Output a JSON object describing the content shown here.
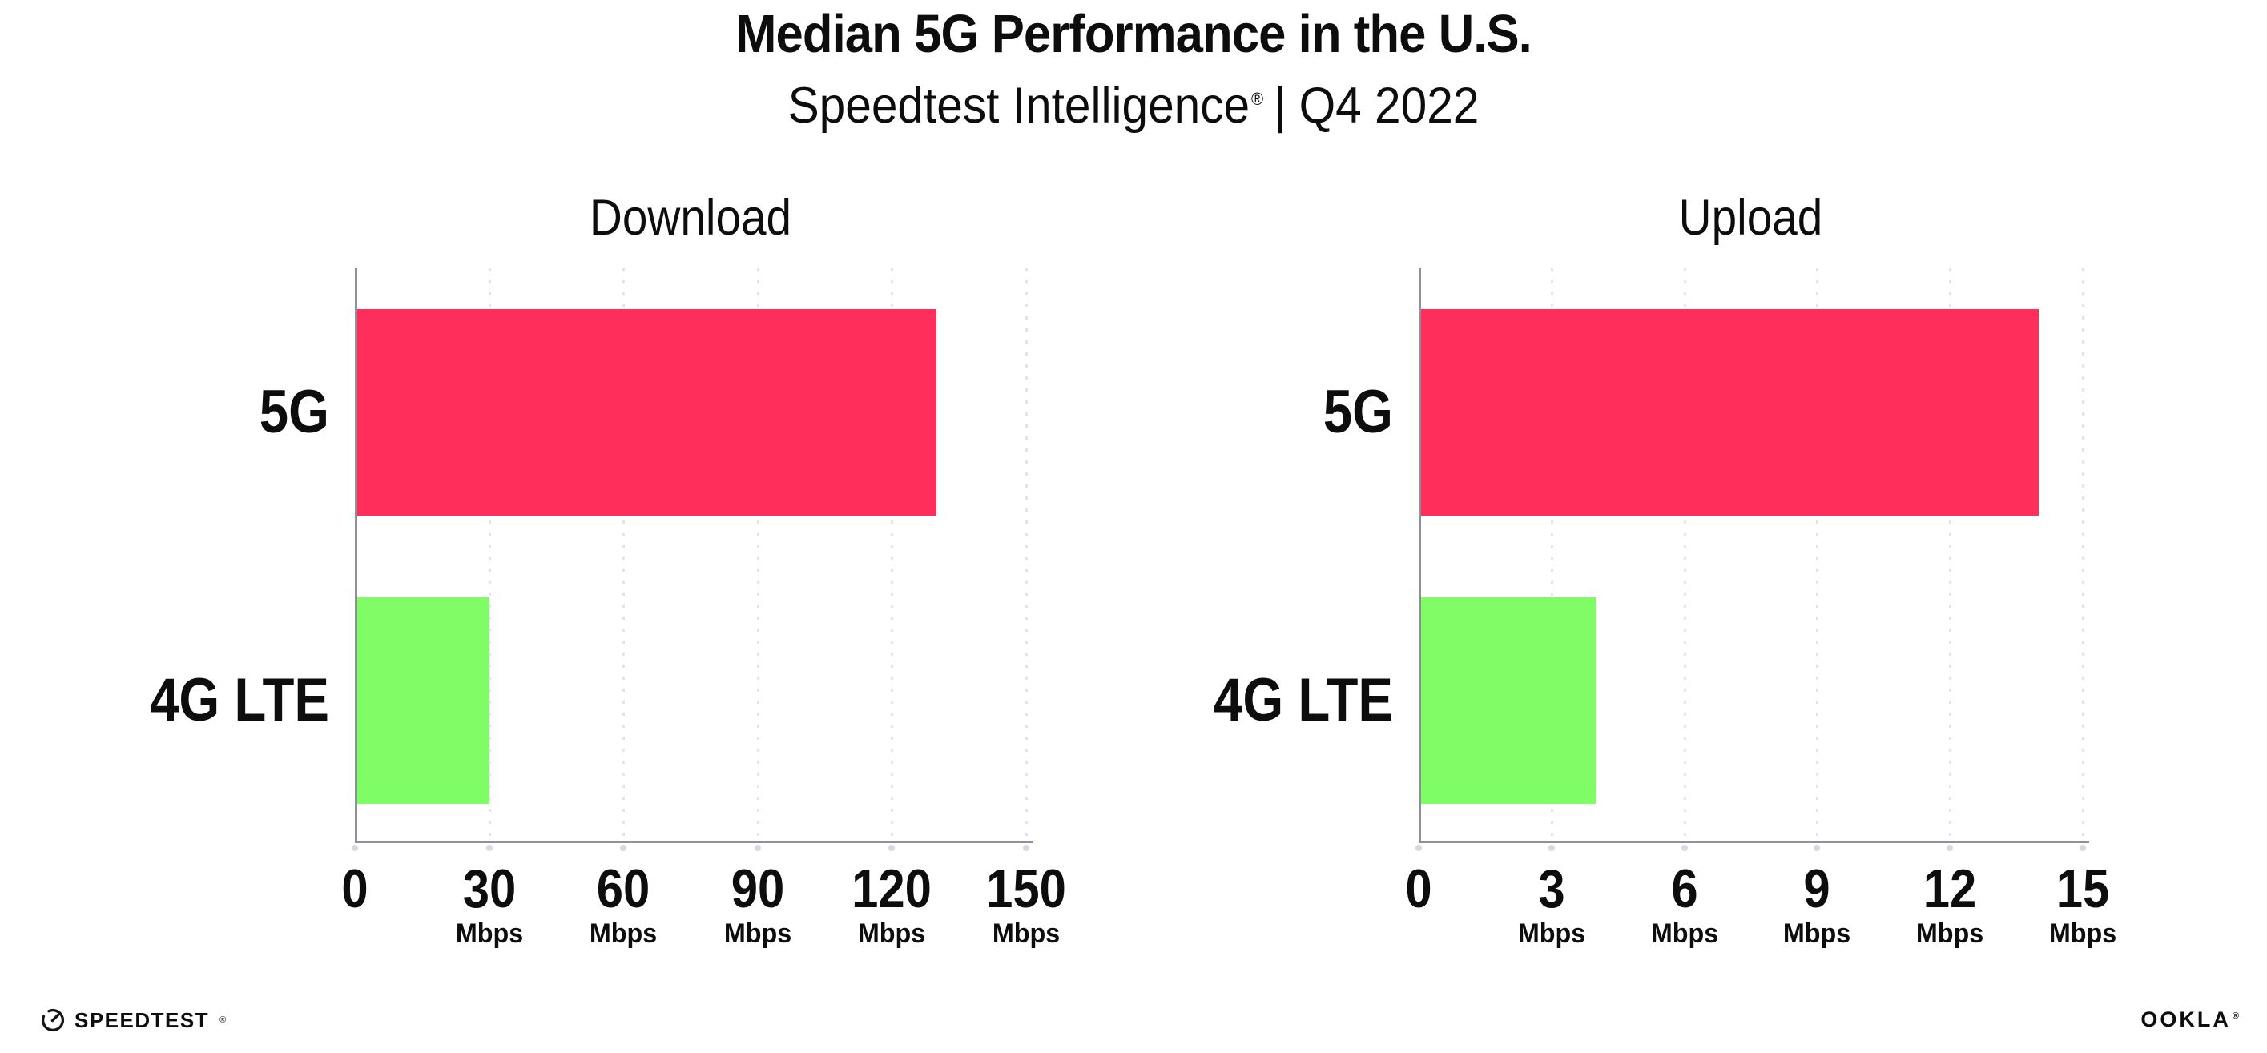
{
  "header": {
    "title": "Median 5G Performance in the U.S.",
    "subtitle_brand": "Speedtest Intelligence",
    "subtitle_mark": "®",
    "subtitle_suffix": "| Q4 2022"
  },
  "chart_data": [
    {
      "type": "bar",
      "orientation": "horizontal",
      "title": "Download",
      "categories": [
        "5G",
        "4G LTE"
      ],
      "values": [
        130,
        30
      ],
      "unit": "Mbps",
      "xlim": [
        0,
        150
      ],
      "xticks": [
        0,
        30,
        60,
        90,
        120,
        150
      ],
      "grid": "vertical-dotted",
      "legend": "none",
      "bar_colors": [
        "#FF2E5B",
        "#80FC66"
      ]
    },
    {
      "type": "bar",
      "orientation": "horizontal",
      "title": "Upload",
      "categories": [
        "5G",
        "4G LTE"
      ],
      "values": [
        14,
        4
      ],
      "unit": "Mbps",
      "xlim": [
        0,
        15
      ],
      "xticks": [
        0,
        3,
        6,
        9,
        12,
        15
      ],
      "grid": "vertical-dotted",
      "legend": "none",
      "bar_colors": [
        "#FF2E5B",
        "#80FC66"
      ]
    }
  ],
  "footer": {
    "speedtest_label": "SPEEDTEST",
    "speedtest_mark": "®",
    "ookla_label": "OOKLA",
    "ookla_mark": "®"
  },
  "colors": {
    "bar_5g": "#FF2E5B",
    "bar_4g_lte": "#80FC66",
    "axis_line": "#8f8f98",
    "gridline": "#e3e3ec",
    "tick_dot": "#d8d8e2",
    "text": "#0d0d0d"
  }
}
